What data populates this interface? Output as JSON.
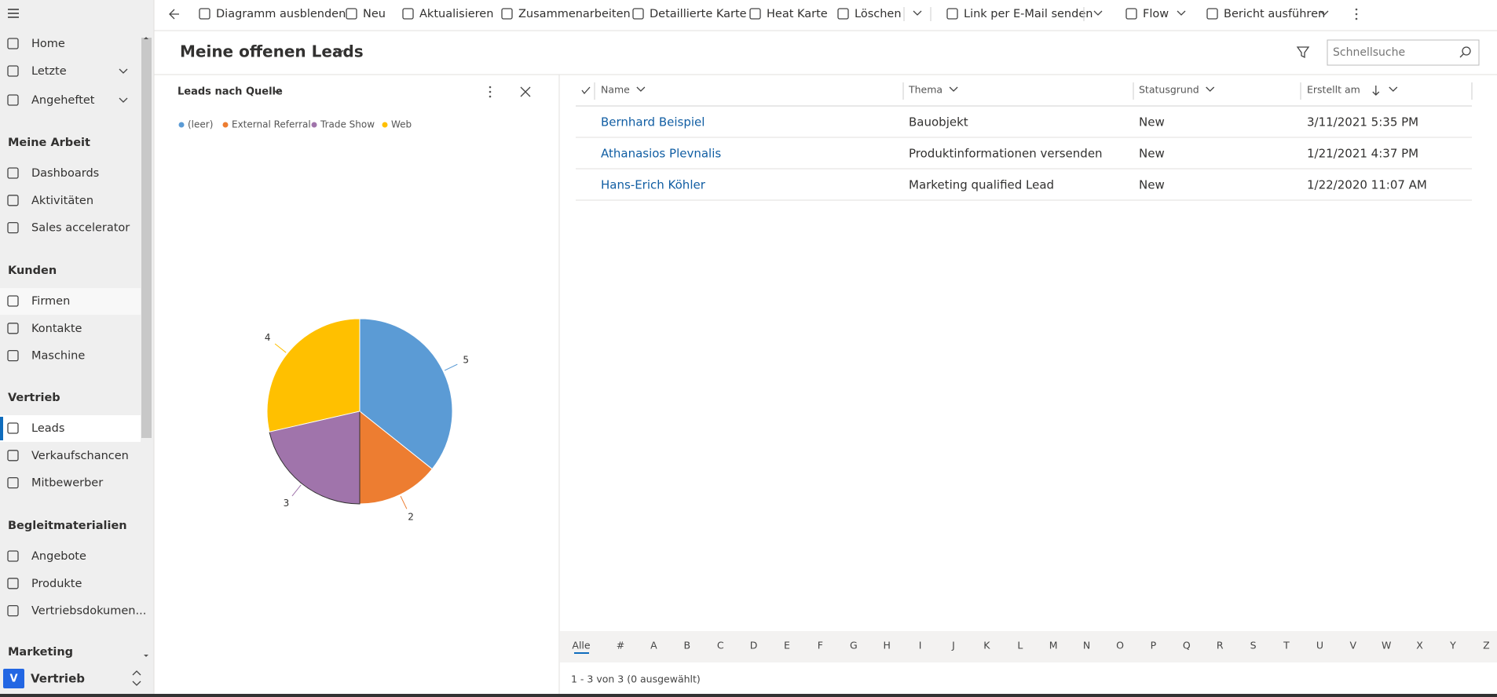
{
  "toolbar": {
    "items": [
      "Diagramm ausblenden",
      "Neu",
      "Aktualisieren",
      "Zusammenarbeiten",
      "Detaillierte Karte",
      "Heat Karte",
      "Löschen",
      "Link per E-Mail senden",
      "Flow",
      "Bericht ausführen"
    ]
  },
  "nav": {
    "top": [
      "Home",
      "Letzte",
      "Angeheftet"
    ],
    "sections": [
      {
        "heading": "Meine Arbeit",
        "items": [
          "Dashboards",
          "Aktivitäten",
          "Sales accelerator"
        ]
      },
      {
        "heading": "Kunden",
        "items": [
          "Firmen",
          "Kontakte",
          "Maschine"
        ]
      },
      {
        "heading": "Vertrieb",
        "items": [
          "Leads",
          "Verkaufschancen",
          "Mitbewerber"
        ]
      },
      {
        "heading": "Begleitmaterialien",
        "items": [
          "Angebote",
          "Produkte",
          "Vertriebsdokumen..."
        ]
      },
      {
        "heading": "Marketing",
        "items": []
      }
    ],
    "area": {
      "badge": "V",
      "label": "Vertrieb"
    }
  },
  "view": {
    "title": "Meine offenen Leads",
    "search_placeholder": "Schnellsuche"
  },
  "chart_data": {
    "type": "pie",
    "title": "Leads nach Quelle",
    "categories": [
      "(leer)",
      "External Referral",
      "Trade Show",
      "Web"
    ],
    "values": [
      5,
      2,
      3,
      4
    ],
    "colors": [
      "#5b9bd5",
      "#ed7d31",
      "#a074ab",
      "#ffc000"
    ]
  },
  "grid": {
    "columns": [
      "Name",
      "Thema",
      "Statusgrund",
      "Erstellt am"
    ],
    "rows": [
      [
        "Bernhard Beispiel",
        "Bauobjekt",
        "New",
        "3/11/2021 5:35 PM"
      ],
      [
        "Athanasios Plevnalis",
        "Produktinformationen versenden",
        "New",
        "1/21/2021 4:37 PM"
      ],
      [
        "Hans-Erich Köhler",
        "Marketing qualified Lead",
        "New",
        "1/22/2020 11:07 AM"
      ]
    ]
  },
  "jump_bar": {
    "letters": [
      "Alle",
      "#",
      "A",
      "B",
      "C",
      "D",
      "E",
      "F",
      "G",
      "H",
      "I",
      "J",
      "K",
      "L",
      "M",
      "N",
      "O",
      "P",
      "Q",
      "R",
      "S",
      "T",
      "U",
      "V",
      "W",
      "X",
      "Y",
      "Z"
    ]
  },
  "footer": "1 - 3 von 3 (0 ausgewählt)"
}
